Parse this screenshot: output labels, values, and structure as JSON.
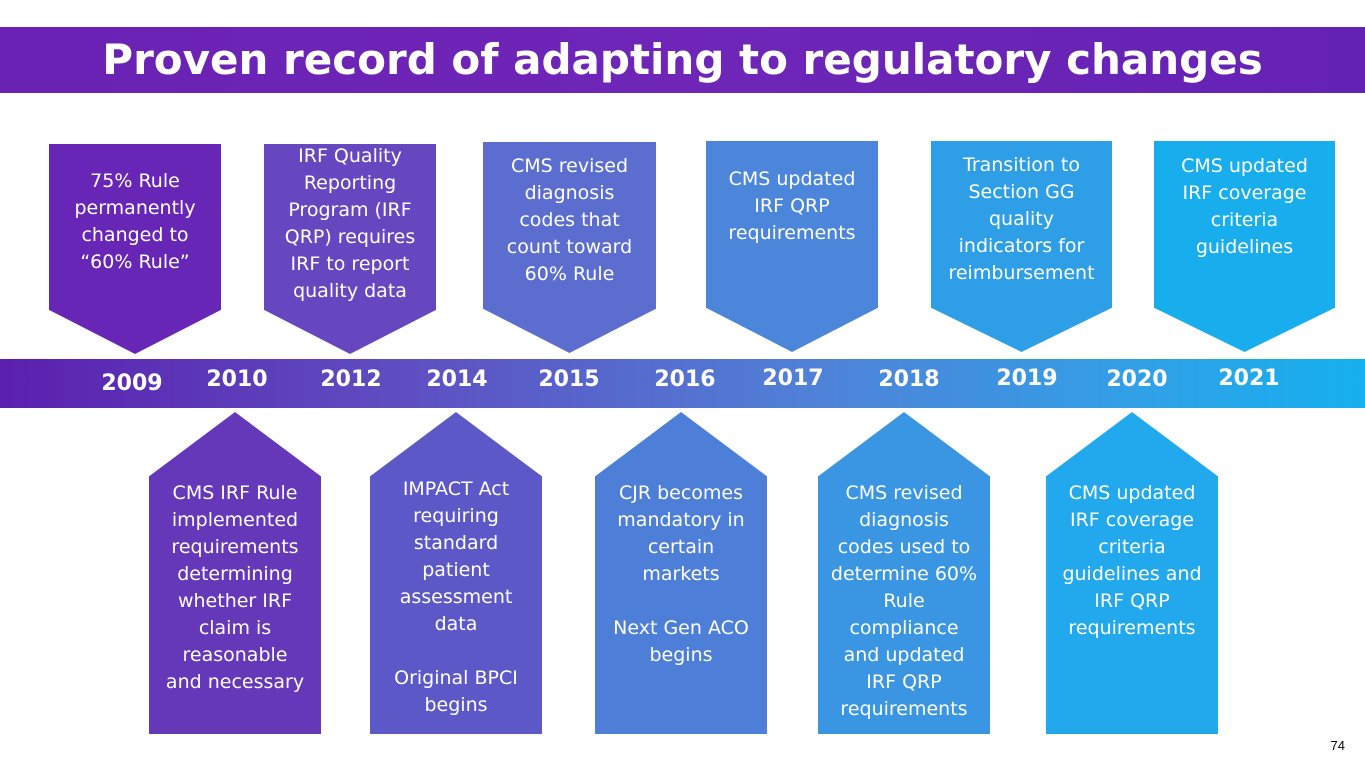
{
  "title": "Proven record of adapting to regulatory changes",
  "years": [
    "2009",
    "2010",
    "2012",
    "2014",
    "2015",
    "2016",
    "2017",
    "2018",
    "2019",
    "2020",
    "2021"
  ],
  "top_events": [
    {
      "text": "75% Rule\npermanently\nchanged to\n“60% Rule”",
      "color": "#6726b6"
    },
    {
      "text": "IRF Quality\nReporting\nProgram (IRF\nQRP) requires\nIRF to report\nquality data",
      "color": "#6747c0"
    },
    {
      "text": "CMS revised\ndiagnosis\ncodes that\ncount toward\n60% Rule",
      "color": "#5b6dcf"
    },
    {
      "text": "CMS updated\nIRF QRP\nrequirements",
      "color": "#4b86da"
    },
    {
      "text": "Transition to\nSection GG\nquality\nindicators for\nreimbursement",
      "color": "#2e9fe6"
    },
    {
      "text": "CMS updated\nIRF coverage\ncriteria\nguidelines",
      "color": "#18aeee"
    }
  ],
  "bottom_events": [
    {
      "text": "CMS IRF Rule\nimplemented\nrequirements\ndetermining\nwhether IRF\nclaim is\nreasonable\nand necessary",
      "color": "#6537b9"
    },
    {
      "text": "IMPACT Act\nrequiring\nstandard\npatient\nassessment\ndata\n\nOriginal BPCI\nbegins",
      "color": "#5d58c8"
    },
    {
      "text": "CJR becomes\nmandatory in\ncertain\nmarkets\n\nNext Gen ACO\nbegins",
      "color": "#4e7fd8"
    },
    {
      "text": "CMS revised\ndiagnosis\ncodes used to\ndetermine 60%\nRule\ncompliance\nand updated\nIRF QRP\nrequirements",
      "color": "#3a96e2"
    },
    {
      "text": "CMS updated\nIRF coverage\ncriteria\nguidelines and\nIRF QRP\nrequirements",
      "color": "#22a8ec"
    }
  ],
  "page_number": "74"
}
